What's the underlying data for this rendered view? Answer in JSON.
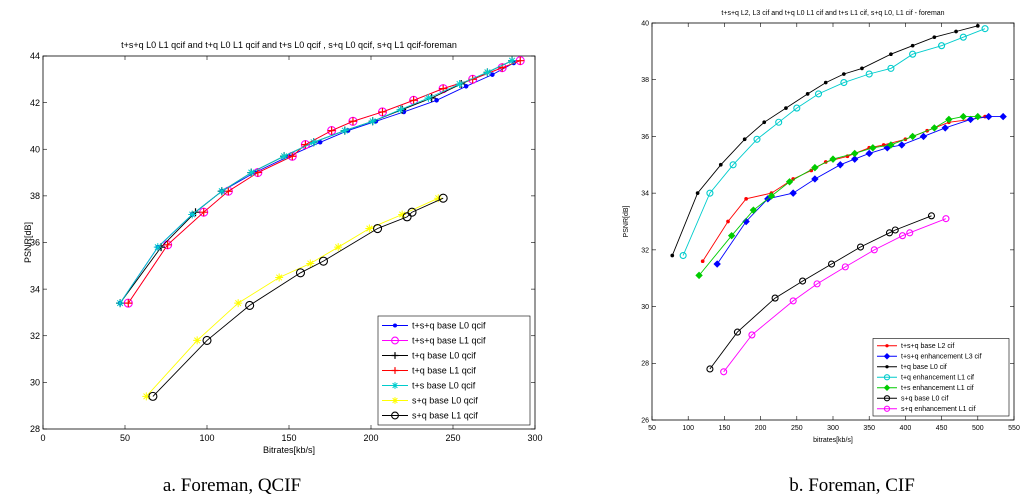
{
  "captions": [
    "a. Foreman, QCIF",
    "b.  Foreman, CIF"
  ],
  "chart_data": [
    {
      "type": "line",
      "title": "t+s+q L0 L1 qcif and t+q L0 L1 qcif and t+s L0 qcif , s+q L0 qcif, s+q L1 qcif-foreman",
      "xlabel": "Bitrates[kb/s]",
      "ylabel": "PSNR[dB]",
      "xlim": [
        0,
        300
      ],
      "ylim": [
        28,
        44
      ],
      "xticks": [
        0,
        50,
        100,
        150,
        200,
        250,
        300
      ],
      "yticks": [
        28,
        30,
        32,
        34,
        36,
        38,
        40,
        42,
        44
      ],
      "legend_position": "lower-right",
      "series": [
        {
          "name": "t+s+q base L0 qcif",
          "color": "#0000ff",
          "marker": "dot",
          "x": [
            47,
            70,
            91,
            109,
            129,
            150,
            169,
            186,
            203,
            220,
            240,
            258,
            274,
            287
          ],
          "y": [
            33.4,
            35.8,
            37.2,
            38.2,
            39.0,
            39.7,
            40.3,
            40.8,
            41.2,
            41.6,
            42.1,
            42.7,
            43.2,
            43.7
          ]
        },
        {
          "name": "t+s+q base L1 qcif",
          "color": "#ff00ff",
          "marker": "circle",
          "x": [
            52,
            76,
            98,
            113,
            131,
            152,
            160,
            176,
            189,
            207,
            226,
            244,
            262,
            280,
            291
          ],
          "y": [
            33.4,
            35.9,
            37.3,
            38.2,
            39.0,
            39.7,
            40.2,
            40.8,
            41.2,
            41.6,
            42.1,
            42.6,
            43.0,
            43.5,
            43.8
          ]
        },
        {
          "name": "t+q base L0 qcif",
          "color": "#000000",
          "marker": "plus",
          "x": [
            47,
            72,
            93,
            109,
            127,
            147,
            165,
            184,
            201,
            219,
            237,
            255,
            271,
            286
          ],
          "y": [
            33.4,
            35.8,
            37.3,
            38.2,
            39.0,
            39.7,
            40.3,
            40.8,
            41.2,
            41.7,
            42.2,
            42.8,
            43.3,
            43.8
          ]
        },
        {
          "name": "t+q base L1 qcif",
          "color": "#ff0000",
          "marker": "plus",
          "x": [
            52,
            76,
            98,
            113,
            131,
            152,
            160,
            176,
            189,
            207,
            226,
            244,
            262,
            280,
            291
          ],
          "y": [
            33.4,
            35.9,
            37.3,
            38.2,
            39.0,
            39.7,
            40.2,
            40.8,
            41.2,
            41.6,
            42.1,
            42.6,
            43.0,
            43.5,
            43.8
          ]
        },
        {
          "name": "t+s base L0 qcif",
          "color": "#00cccc",
          "marker": "star",
          "x": [
            47,
            70,
            91,
            109,
            127,
            147,
            165,
            184,
            201,
            218,
            235,
            254,
            271,
            286
          ],
          "y": [
            33.4,
            35.8,
            37.2,
            38.2,
            39.0,
            39.7,
            40.3,
            40.8,
            41.2,
            41.7,
            42.2,
            42.8,
            43.3,
            43.8
          ]
        },
        {
          "name": "s+q base L0 qcif",
          "color": "#ffff00",
          "marker": "star",
          "x": [
            63,
            94,
            119,
            144,
            163,
            180,
            199,
            219,
            241
          ],
          "y": [
            29.4,
            31.8,
            33.4,
            34.5,
            35.1,
            35.8,
            36.6,
            37.2,
            37.9
          ]
        },
        {
          "name": "s+q base L1 qcif",
          "color": "#000000",
          "marker": "circle",
          "x": [
            67,
            100,
            126,
            157,
            171,
            204,
            222,
            225,
            244
          ],
          "y": [
            29.4,
            31.8,
            33.3,
            34.7,
            35.2,
            36.6,
            37.1,
            37.3,
            37.9
          ]
        }
      ]
    },
    {
      "type": "line",
      "title": "t+s+q L2, L3 cif and t+q L0 L1 cif and t+s L1 cif, s+q L0, L1 cif - foreman",
      "xlabel": "bitrates[kb/s]",
      "ylabel": "PSNR[dB]",
      "xlim": [
        50,
        550
      ],
      "ylim": [
        26,
        40
      ],
      "xticks": [
        50,
        100,
        150,
        200,
        250,
        300,
        350,
        400,
        450,
        500,
        550
      ],
      "yticks": [
        26,
        28,
        30,
        32,
        34,
        36,
        38,
        40
      ],
      "legend_position": "lower-right",
      "series": [
        {
          "name": "t+s+q base L2 cif",
          "color": "#ff0000",
          "marker": "dot",
          "x": [
            120,
            155,
            180,
            215,
            245,
            270,
            290,
            320,
            350,
            370,
            400,
            430,
            460,
            490,
            510
          ],
          "y": [
            31.6,
            33.0,
            33.8,
            34.0,
            34.5,
            34.8,
            35.1,
            35.3,
            35.6,
            35.7,
            35.9,
            36.2,
            36.5,
            36.6,
            36.7
          ]
        },
        {
          "name": "t+s+q enhancement L3 cif",
          "color": "#0000ff",
          "marker": "diamond",
          "x": [
            140,
            180,
            210,
            245,
            275,
            310,
            330,
            350,
            375,
            395,
            425,
            455,
            490,
            515,
            535
          ],
          "y": [
            31.5,
            33.0,
            33.8,
            34.0,
            34.5,
            35.0,
            35.2,
            35.4,
            35.6,
            35.7,
            36.0,
            36.3,
            36.6,
            36.7,
            36.7
          ]
        },
        {
          "name": "t+q base L0 cif",
          "color": "#000000",
          "marker": "dot",
          "x": [
            78,
            113,
            145,
            178,
            205,
            235,
            265,
            290,
            315,
            340,
            380,
            410,
            440,
            470,
            500
          ],
          "y": [
            31.8,
            34.0,
            35.0,
            35.9,
            36.5,
            37.0,
            37.5,
            37.9,
            38.2,
            38.4,
            38.9,
            39.2,
            39.5,
            39.7,
            39.9
          ]
        },
        {
          "name": "t+q enhancement L1 cif",
          "color": "#00cccc",
          "marker": "circle",
          "x": [
            93,
            130,
            162,
            195,
            225,
            250,
            280,
            315,
            350,
            380,
            410,
            450,
            480,
            510
          ],
          "y": [
            31.8,
            34.0,
            35.0,
            35.9,
            36.5,
            37.0,
            37.5,
            37.9,
            38.2,
            38.4,
            38.9,
            39.2,
            39.5,
            39.8
          ]
        },
        {
          "name": "t+s enhancement L1 cif",
          "color": "#00cc00",
          "marker": "diamond",
          "x": [
            115,
            160,
            190,
            215,
            240,
            275,
            300,
            330,
            355,
            380,
            410,
            440,
            460,
            480,
            500
          ],
          "y": [
            31.1,
            32.5,
            33.4,
            33.9,
            34.4,
            34.9,
            35.2,
            35.4,
            35.6,
            35.7,
            36.0,
            36.3,
            36.6,
            36.7,
            36.7
          ]
        },
        {
          "name": "s+q base L0 cif",
          "color": "#000000",
          "marker": "circle",
          "x": [
            130,
            168,
            220,
            258,
            298,
            338,
            378,
            386,
            436
          ],
          "y": [
            27.8,
            29.1,
            30.3,
            30.9,
            31.5,
            32.1,
            32.6,
            32.7,
            33.2
          ]
        },
        {
          "name": "s+q enhancement L1 cif",
          "color": "#ff00ff",
          "marker": "circle",
          "x": [
            149,
            188,
            245,
            278,
            317,
            357,
            396,
            406,
            456
          ],
          "y": [
            27.7,
            29.0,
            30.2,
            30.8,
            31.4,
            32.0,
            32.5,
            32.6,
            33.1
          ]
        }
      ]
    }
  ]
}
